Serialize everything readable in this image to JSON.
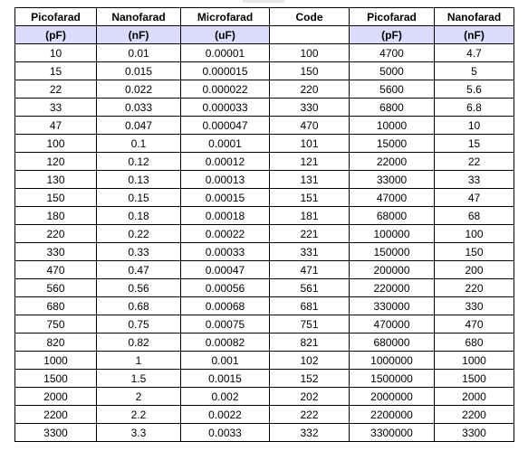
{
  "header": {
    "titles": [
      "Picofarad",
      "Nanofarad",
      "Microfarad",
      "Code",
      "Picofarad",
      "Nanofarad"
    ],
    "units": [
      "(pF)",
      "(nF)",
      "(uF)",
      "",
      "(pF)",
      "(nF)"
    ]
  },
  "rows": [
    [
      "10",
      "0.01",
      "0.00001",
      "100",
      "4700",
      "4.7"
    ],
    [
      "15",
      "0.015",
      "0.000015",
      "150",
      "5000",
      "5"
    ],
    [
      "22",
      "0.022",
      "0.000022",
      "220",
      "5600",
      "5.6"
    ],
    [
      "33",
      "0.033",
      "0.000033",
      "330",
      "6800",
      "6.8"
    ],
    [
      "47",
      "0.047",
      "0.000047",
      "470",
      "10000",
      "10"
    ],
    [
      "100",
      "0.1",
      "0.0001",
      "101",
      "15000",
      "15"
    ],
    [
      "120",
      "0.12",
      "0.00012",
      "121",
      "22000",
      "22"
    ],
    [
      "130",
      "0.13",
      "0.00013",
      "131",
      "33000",
      "33"
    ],
    [
      "150",
      "0.15",
      "0.00015",
      "151",
      "47000",
      "47"
    ],
    [
      "180",
      "0.18",
      "0.00018",
      "181",
      "68000",
      "68"
    ],
    [
      "220",
      "0.22",
      "0.00022",
      "221",
      "100000",
      "100"
    ],
    [
      "330",
      "0.33",
      "0.00033",
      "331",
      "150000",
      "150"
    ],
    [
      "470",
      "0.47",
      "0.00047",
      "471",
      "200000",
      "200"
    ],
    [
      "560",
      "0.56",
      "0.00056",
      "561",
      "220000",
      "220"
    ],
    [
      "680",
      "0.68",
      "0.00068",
      "681",
      "330000",
      "330"
    ],
    [
      "750",
      "0.75",
      "0.00075",
      "751",
      "470000",
      "470"
    ],
    [
      "820",
      "0.82",
      "0.00082",
      "821",
      "680000",
      "680"
    ],
    [
      "1000",
      "1",
      "0.001",
      "102",
      "1000000",
      "1000"
    ],
    [
      "1500",
      "1.5",
      "0.0015",
      "152",
      "1500000",
      "1500"
    ],
    [
      "2000",
      "2",
      "0.002",
      "202",
      "2000000",
      "2000"
    ],
    [
      "2200",
      "2.2",
      "0.0022",
      "222",
      "2200000",
      "2200"
    ],
    [
      "3300",
      "3.3",
      "0.0033",
      "332",
      "3300000",
      "3300"
    ]
  ],
  "colors": {
    "unit_header_bg": "#dcdcff",
    "border": "#000000"
  }
}
